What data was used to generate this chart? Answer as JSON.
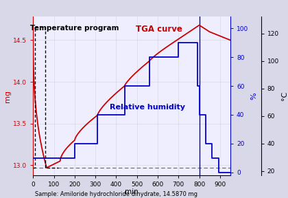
{
  "sample_label": "Sample: Amiloride hydrochloride dihydrate, 14.5870 mg",
  "xlabel": "min",
  "ylabel_left": "mg",
  "ylabel_right_pct": "%",
  "ylabel_right_temp": "°C",
  "xlim": [
    0,
    950
  ],
  "ylim_mg": [
    12.88,
    14.78
  ],
  "ylim_pct": [
    -2,
    108
  ],
  "ylim_temp": [
    17,
    132
  ],
  "xticks": [
    0,
    100,
    200,
    300,
    400,
    500,
    600,
    700,
    800,
    900
  ],
  "yticks_mg": [
    13.0,
    13.5,
    14.0,
    14.5
  ],
  "yticks_pct": [
    0,
    20,
    40,
    60,
    80,
    100
  ],
  "yticks_temp": [
    20,
    40,
    60,
    80,
    100,
    120
  ],
  "bg_color": "#d8d8e8",
  "plot_bg": "#eeeeff",
  "tga_color": "#cc0000",
  "rh_color": "#0000cc",
  "temp_prog_color": "#000000",
  "annotation_tga": "TGA curve",
  "annotation_rh": "Relative humidity",
  "annotation_temp": "Temperature program",
  "tga_label_color": "#cc0000",
  "rh_label_color": "#0000cc",
  "temp_label_color": "#000000",
  "vertical_line_x": 800,
  "dashed_line_mg": 12.97
}
